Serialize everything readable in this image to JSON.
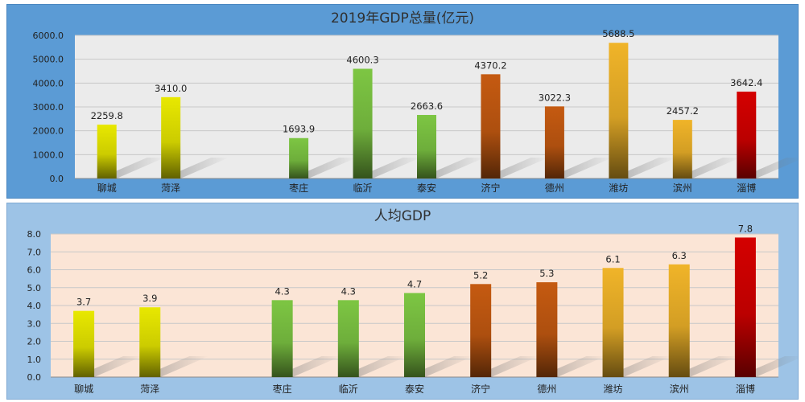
{
  "chart_data": [
    {
      "type": "bar",
      "title": "2019年GDP总量(亿元)",
      "categories": [
        "聊城",
        "菏泽",
        "",
        "枣庄",
        "临沂",
        "泰安",
        "济宁",
        "德州",
        "潍坊",
        "滨州",
        "淄博"
      ],
      "values": [
        2259.8,
        3410.0,
        null,
        1693.9,
        4600.3,
        2663.6,
        4370.2,
        3022.3,
        5688.5,
        2457.2,
        3642.4
      ],
      "value_labels": [
        "2259.8",
        "3410.0",
        "",
        "1693.9",
        "4600.3",
        "2663.6",
        "4370.2",
        "3022.3",
        "5688.5",
        "2457.2",
        "3642.4"
      ],
      "ylim": [
        0,
        6000
      ],
      "yticks": [
        "0.0",
        "1000.0",
        "2000.0",
        "3000.0",
        "4000.0",
        "5000.0",
        "6000.0"
      ],
      "grid": true,
      "plot_background": "#ebebeb",
      "panel_background": "#5b9bd5",
      "bar_colors": [
        "#e8e800",
        "#e8e800",
        "",
        "#7dc643",
        "#7dc643",
        "#7dc643",
        "#c55a11",
        "#c55a11",
        "#f0b429",
        "#f0b429",
        "#d40000"
      ]
    },
    {
      "type": "bar",
      "title": "人均GDP",
      "categories": [
        "聊城",
        "菏泽",
        "",
        "枣庄",
        "临沂",
        "泰安",
        "济宁",
        "德州",
        "潍坊",
        "滨州",
        "淄博"
      ],
      "values": [
        3.7,
        3.9,
        null,
        4.3,
        4.3,
        4.7,
        5.2,
        5.3,
        6.1,
        6.3,
        7.8
      ],
      "value_labels": [
        "3.7",
        "3.9",
        "",
        "4.3",
        "4.3",
        "4.7",
        "5.2",
        "5.3",
        "6.1",
        "6.3",
        "7.8"
      ],
      "ylim": [
        0,
        8
      ],
      "yticks": [
        "0.0",
        "1.0",
        "2.0",
        "3.0",
        "4.0",
        "5.0",
        "6.0",
        "7.0",
        "8.0"
      ],
      "grid": true,
      "plot_background": "#fbe5d6",
      "panel_background": "#9dc3e6",
      "bar_colors": [
        "#e8e800",
        "#e8e800",
        "",
        "#7dc643",
        "#7dc643",
        "#7dc643",
        "#c55a11",
        "#c55a11",
        "#f0b429",
        "#f0b429",
        "#d40000"
      ]
    }
  ]
}
